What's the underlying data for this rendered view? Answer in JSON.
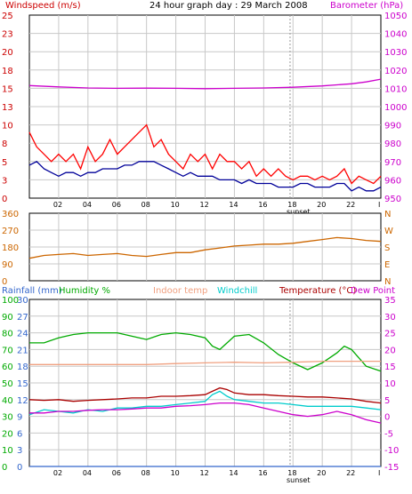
{
  "header": {
    "left_label": "Windspeed (m/s)",
    "title": "24 hour graph day : 29 March 2008",
    "right_label": "Barometer (hPa)"
  },
  "hour_labels": [
    "02",
    "04",
    "06",
    "08",
    "10",
    "12",
    "14",
    "16",
    "18",
    "20",
    "22"
  ],
  "end_tick_label": "I",
  "sunset_label": "sunset",
  "colors": {
    "background": "#ffffff",
    "plot_bg": "#ffffff",
    "grid": "#c8c8c8",
    "frame": "#000000",
    "windspeed_label": "#cc0000",
    "wind_gust": "#ff0000",
    "wind_avg": "#000099",
    "barometer": "#cc00cc",
    "direction": "#cc6600",
    "direction_axis": "#cc6600",
    "rainfall": "#3366cc",
    "humidity": "#00aa00",
    "indoor": "#f0a080",
    "windchill": "#00cccc",
    "temperature": "#aa0000",
    "dewpoint": "#cc00cc",
    "right_temp_axis": "#cc00cc"
  },
  "chart_data": [
    {
      "type": "line",
      "name": "wind-and-barometer",
      "left_axis": {
        "label": "Windspeed (m/s)",
        "ticks": [
          0,
          3,
          5,
          8,
          10,
          13,
          15,
          18,
          20,
          23,
          25
        ],
        "range": [
          0,
          25
        ]
      },
      "right_axis": {
        "label": "Barometer (hPa)",
        "ticks": [
          950,
          960,
          970,
          980,
          990,
          1000,
          1010,
          1020,
          1030,
          1040,
          1050
        ],
        "range": [
          950,
          1050
        ]
      },
      "x": {
        "unit": "hour",
        "range": [
          0,
          24
        ]
      },
      "series": [
        {
          "name": "gust",
          "axis": "left",
          "x": [
            0,
            0.5,
            1,
            1.5,
            2,
            2.5,
            3,
            3.5,
            4,
            4.5,
            5,
            5.5,
            6,
            6.5,
            7,
            7.5,
            8,
            8.5,
            9,
            9.5,
            10,
            10.5,
            11,
            11.5,
            12,
            12.5,
            13,
            13.5,
            14,
            14.5,
            15,
            15.5,
            16,
            16.5,
            17,
            17.5,
            18,
            18.5,
            19,
            19.5,
            20,
            20.5,
            21,
            21.5,
            22,
            22.5,
            23,
            23.5,
            24
          ],
          "values": [
            9,
            7,
            6,
            5,
            6,
            5,
            6,
            4,
            7,
            5,
            6,
            8,
            6,
            7,
            8,
            9,
            10,
            7,
            8,
            6,
            5,
            4,
            6,
            5,
            6,
            4,
            6,
            5,
            5,
            4,
            5,
            3,
            4,
            3,
            4,
            3,
            2.5,
            3,
            3,
            2.5,
            3,
            2.5,
            3,
            4,
            2,
            3,
            2.5,
            2,
            3
          ]
        },
        {
          "name": "average",
          "axis": "left",
          "x": [
            0,
            0.5,
            1,
            1.5,
            2,
            2.5,
            3,
            3.5,
            4,
            4.5,
            5,
            5.5,
            6,
            6.5,
            7,
            7.5,
            8,
            8.5,
            9,
            9.5,
            10,
            10.5,
            11,
            11.5,
            12,
            12.5,
            13,
            13.5,
            14,
            14.5,
            15,
            15.5,
            16,
            16.5,
            17,
            17.5,
            18,
            18.5,
            19,
            19.5,
            20,
            20.5,
            21,
            21.5,
            22,
            22.5,
            23,
            23.5,
            24
          ],
          "values": [
            4.5,
            5,
            4,
            3.5,
            3,
            3.5,
            3.5,
            3,
            3.5,
            3.5,
            4,
            4,
            4,
            4.5,
            4.5,
            5,
            5,
            5,
            4.5,
            4,
            3.5,
            3,
            3.5,
            3,
            3,
            3,
            2.5,
            2.5,
            2.5,
            2,
            2.5,
            2,
            2,
            2,
            1.5,
            1.5,
            1.5,
            2,
            2,
            1.5,
            1.5,
            1.5,
            2,
            2,
            1,
            1.5,
            1,
            1,
            1.5
          ]
        },
        {
          "name": "barometer",
          "axis": "right",
          "x": [
            0,
            2,
            4,
            6,
            8,
            10,
            12,
            14,
            16,
            18,
            20,
            22,
            23,
            24
          ],
          "values": [
            1011.5,
            1010.8,
            1010.2,
            1010.0,
            1010.1,
            1010.0,
            1009.8,
            1010.0,
            1010.2,
            1010.6,
            1011.3,
            1012.5,
            1013.5,
            1015.0
          ]
        }
      ]
    },
    {
      "type": "line",
      "name": "wind-direction",
      "left_axis": {
        "ticks": [
          0,
          90,
          180,
          270,
          360
        ],
        "range": [
          0,
          360
        ]
      },
      "right_axis": {
        "ticks": [
          "N",
          "W",
          "S",
          "E",
          "N"
        ]
      },
      "x": {
        "unit": "hour",
        "range": [
          0,
          24
        ]
      },
      "series": [
        {
          "name": "direction",
          "x": [
            0,
            1,
            2,
            3,
            4,
            5,
            6,
            7,
            8,
            9,
            10,
            11,
            12,
            13,
            14,
            15,
            16,
            17,
            18,
            19,
            20,
            21,
            22,
            23,
            24
          ],
          "values": [
            120,
            135,
            140,
            145,
            135,
            140,
            145,
            135,
            130,
            140,
            150,
            150,
            165,
            175,
            185,
            190,
            195,
            195,
            200,
            210,
            220,
            230,
            225,
            215,
            210
          ]
        }
      ]
    },
    {
      "type": "line",
      "name": "temperature-humidity-rain",
      "labels": {
        "rainfall": "Rainfall (mm)",
        "humidity": "Humidity %",
        "indoor": "Indoor temp",
        "windchill": "Windchill",
        "temperature": "Temperature (°C)",
        "dewpoint": "Dew Point"
      },
      "left_axis_rain": {
        "ticks": [
          0,
          3,
          6,
          9,
          12,
          15,
          18,
          21,
          24,
          27,
          30
        ],
        "range": [
          0,
          30
        ]
      },
      "left_axis_humidity": {
        "ticks": [
          0,
          10,
          20,
          30,
          40,
          50,
          60,
          70,
          80,
          90,
          100
        ],
        "range": [
          0,
          100
        ]
      },
      "right_axis_temp": {
        "ticks": [
          -15,
          -10,
          -5,
          0,
          5,
          10,
          15,
          20,
          25,
          30,
          35
        ],
        "range": [
          -15,
          35
        ]
      },
      "x": {
        "unit": "hour",
        "range": [
          0,
          24
        ]
      },
      "series": [
        {
          "name": "humidity",
          "axis": "humidity",
          "x": [
            0,
            1,
            2,
            3,
            4,
            5,
            6,
            7,
            8,
            9,
            10,
            11,
            12,
            12.5,
            13,
            13.5,
            14,
            15,
            16,
            17,
            18,
            19,
            20,
            21,
            21.5,
            22,
            22.5,
            23,
            24
          ],
          "values": [
            74,
            74,
            77,
            79,
            80,
            80,
            80,
            78,
            76,
            79,
            80,
            79,
            77,
            72,
            70,
            74,
            78,
            79,
            74,
            67,
            62,
            58,
            62,
            68,
            72,
            70,
            65,
            60,
            57
          ]
        },
        {
          "name": "indoor temp",
          "axis": "temp",
          "x": [
            0,
            2,
            4,
            6,
            8,
            10,
            12,
            14,
            16,
            18,
            20,
            22,
            24
          ],
          "values": [
            15.5,
            15.5,
            15.5,
            15.5,
            15.5,
            15.8,
            16,
            16.2,
            16,
            16.2,
            16.5,
            16.5,
            16.5
          ]
        },
        {
          "name": "temperature",
          "axis": "temp",
          "x": [
            0,
            1,
            2,
            3,
            4,
            5,
            6,
            7,
            8,
            9,
            10,
            11,
            12,
            12.5,
            13,
            13.5,
            14,
            15,
            16,
            17,
            18,
            19,
            20,
            21,
            22,
            23,
            24
          ],
          "values": [
            5,
            4.8,
            5,
            4.5,
            4.8,
            5,
            5.2,
            5.5,
            5.5,
            6,
            6,
            6.2,
            6.5,
            7.5,
            8.5,
            8,
            7,
            6.5,
            6.5,
            6.2,
            6,
            5.8,
            5.8,
            5.5,
            5.2,
            4.5,
            4
          ]
        },
        {
          "name": "windchill",
          "axis": "temp",
          "x": [
            0,
            1,
            2,
            3,
            4,
            5,
            6,
            7,
            8,
            9,
            10,
            11,
            12,
            12.5,
            13,
            13.5,
            14,
            15,
            16,
            17,
            18,
            19,
            20,
            21,
            22,
            23,
            24
          ],
          "values": [
            0.5,
            2,
            1.5,
            1,
            2,
            1.5,
            2.5,
            2.5,
            3,
            3,
            3.5,
            4,
            4.5,
            6.5,
            7.5,
            6,
            5,
            4.5,
            4,
            4,
            3.5,
            3,
            3,
            3,
            3,
            2.5,
            2
          ]
        },
        {
          "name": "dew point",
          "axis": "temp",
          "x": [
            0,
            1,
            2,
            3,
            4,
            5,
            6,
            7,
            8,
            9,
            10,
            11,
            12,
            13,
            14,
            15,
            16,
            17,
            18,
            19,
            20,
            21,
            22,
            23,
            24
          ],
          "values": [
            1,
            1,
            1.5,
            1.5,
            1.8,
            2,
            2,
            2.2,
            2.5,
            2.5,
            3,
            3.2,
            3.5,
            4,
            4,
            3.5,
            2.5,
            1.5,
            0.5,
            0,
            0.5,
            1.5,
            0.5,
            -1,
            -2
          ]
        },
        {
          "name": "rainfall",
          "axis": "rain",
          "x": [
            0,
            24
          ],
          "values": [
            0,
            0
          ]
        }
      ]
    }
  ]
}
